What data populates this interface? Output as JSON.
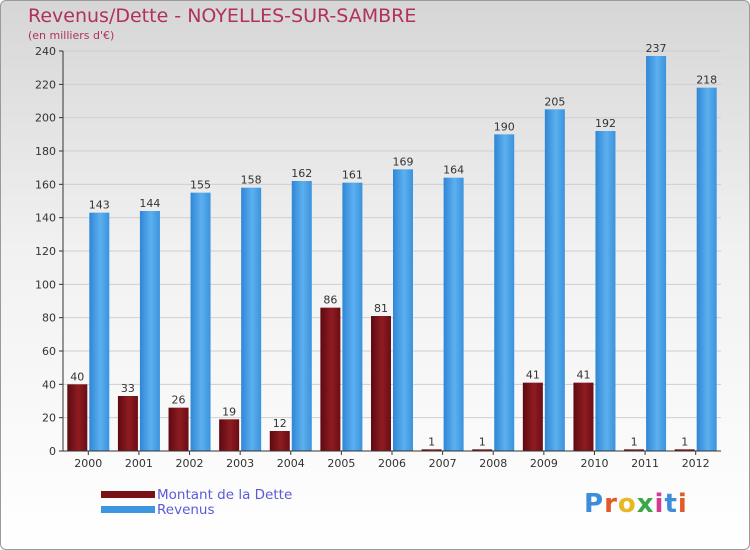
{
  "title": "Revenus/Dette - NOYELLES-SUR-SAMBRE",
  "subtitle": "(en milliers d'€)",
  "logo": {
    "letters": [
      "P",
      "r",
      "o",
      "x",
      "i",
      "t",
      "i"
    ],
    "colors": [
      "#3d8ddb",
      "#e05a2a",
      "#e8b820",
      "#3aa84a",
      "#d43b8c",
      "#3d8ddb",
      "#e05a2a"
    ]
  },
  "colors": {
    "dette": "#7a1018",
    "revenus": "#3c96e0",
    "grid": "#cfcfcf",
    "axis": "#333333",
    "text": "#333333"
  },
  "chart_data": {
    "type": "bar",
    "title": "Revenus/Dette - NOYELLES-SUR-SAMBRE",
    "ylabel": "(en milliers d'€)",
    "categories": [
      "2000",
      "2001",
      "2002",
      "2003",
      "2004",
      "2005",
      "2006",
      "2007",
      "2008",
      "2009",
      "2010",
      "2011",
      "2012"
    ],
    "ylim": [
      0,
      240
    ],
    "yticks": [
      0,
      20,
      40,
      60,
      80,
      100,
      120,
      140,
      160,
      180,
      200,
      220,
      240
    ],
    "grid": true,
    "legend_position": "bottom-left",
    "series": [
      {
        "name": "Montant de la Dette",
        "values": [
          40,
          33,
          26,
          19,
          12,
          86,
          81,
          1,
          1,
          41,
          41,
          1,
          1
        ]
      },
      {
        "name": "Revenus",
        "values": [
          143,
          144,
          155,
          158,
          162,
          161,
          169,
          164,
          190,
          205,
          192,
          237,
          218
        ]
      }
    ]
  }
}
